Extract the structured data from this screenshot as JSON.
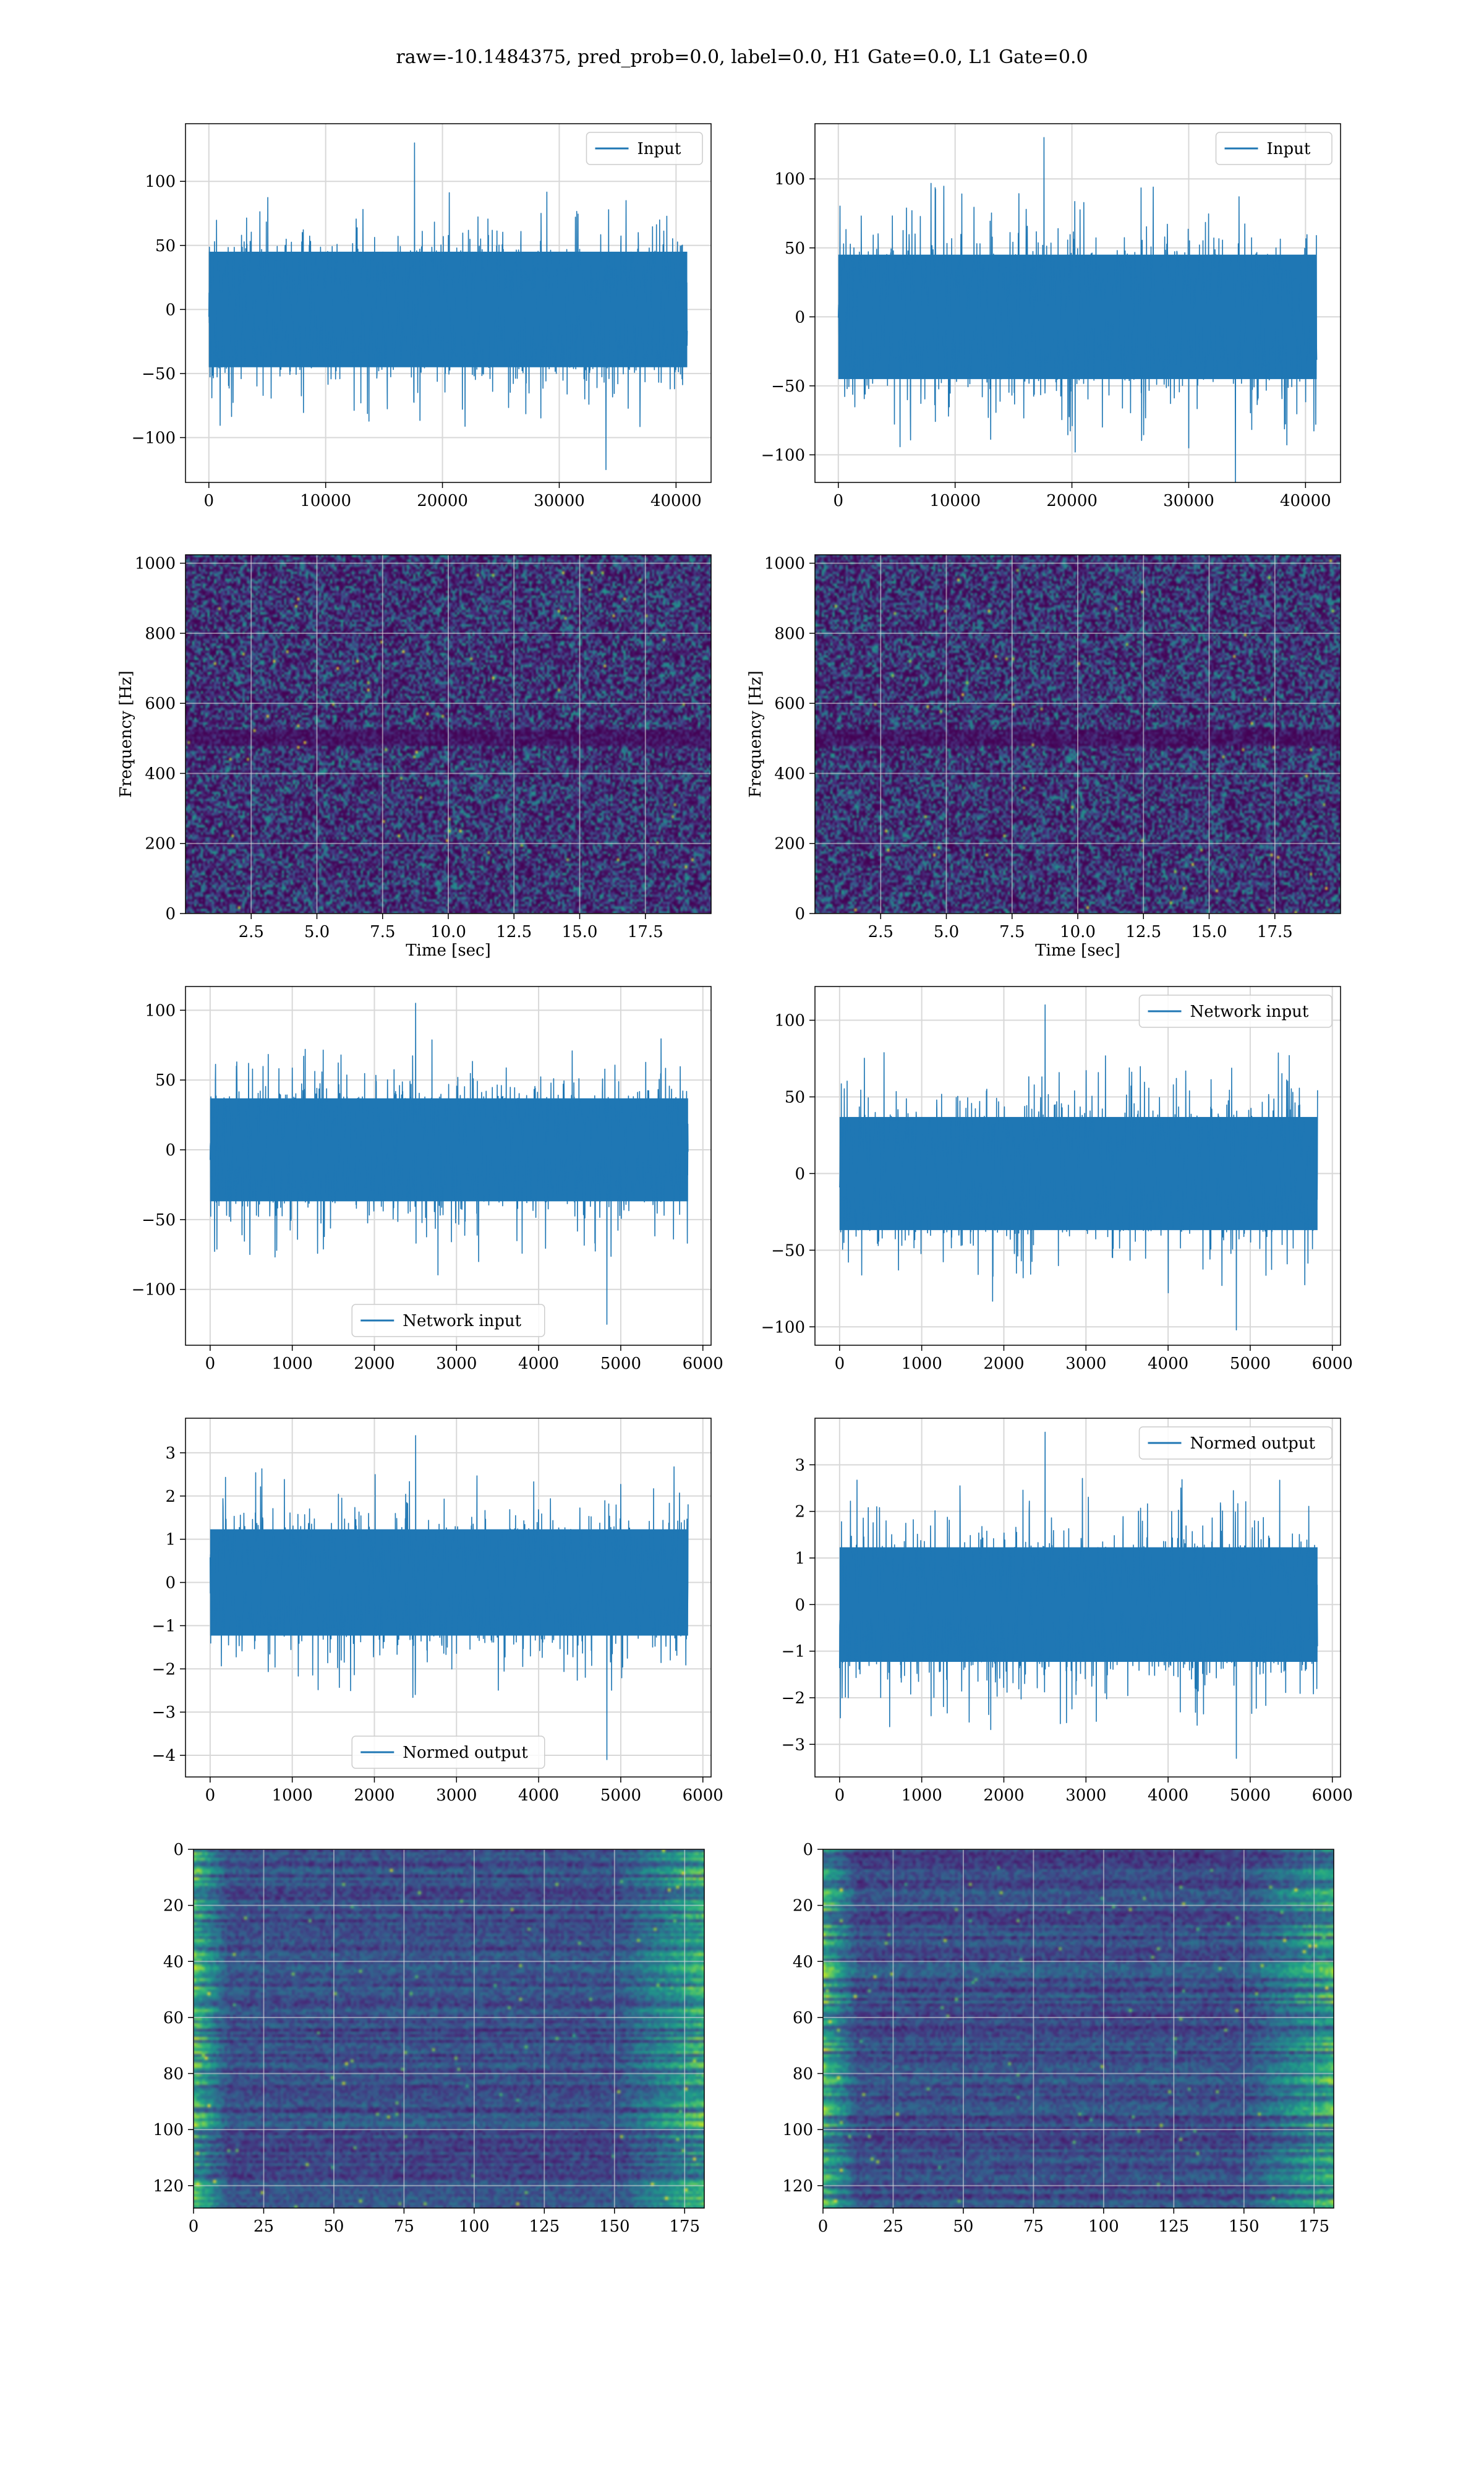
{
  "figure": {
    "suptitle": "raw=-10.1484375, pred_prob=0.0, label=0.0, H1 Gate=0.0, L1 Gate=0.0",
    "series_color": "#1f77b4",
    "grid_color": "#d8d8d8",
    "colormap": "viridis"
  },
  "chart_data": [
    {
      "id": "h1-input",
      "type": "line",
      "title": "",
      "xlabel": "",
      "ylabel": "",
      "legend": {
        "label": "Input",
        "position": "upper right"
      },
      "xlim": [
        -2000,
        43000
      ],
      "ylim": [
        -135,
        145
      ],
      "xticks": [
        0,
        10000,
        20000,
        30000,
        40000
      ],
      "yticks": [
        -100,
        -50,
        0,
        50,
        100
      ],
      "grid": true,
      "series": [
        {
          "name": "Input",
          "n_samples": 40960,
          "x_range": [
            0,
            40960
          ],
          "band": [
            -55,
            55
          ],
          "peak_max": 130,
          "peak_min": -125
        }
      ]
    },
    {
      "id": "l1-input",
      "type": "line",
      "title": "",
      "xlabel": "",
      "ylabel": "",
      "legend": {
        "label": "Input",
        "position": "upper right"
      },
      "xlim": [
        -2000,
        43000
      ],
      "ylim": [
        -120,
        140
      ],
      "xticks": [
        0,
        10000,
        20000,
        30000,
        40000
      ],
      "yticks": [
        -100,
        -50,
        0,
        50,
        100
      ],
      "grid": true,
      "series": [
        {
          "name": "Input",
          "n_samples": 40960,
          "x_range": [
            0,
            40960
          ],
          "band": [
            -55,
            55
          ],
          "peak_max": 130,
          "peak_min": -120
        }
      ]
    },
    {
      "id": "h1-spectrogram",
      "type": "heatmap",
      "title": "",
      "xlabel": "Time [sec]",
      "ylabel": "Frequency [Hz]",
      "xlim": [
        0,
        20
      ],
      "ylim": [
        0,
        1024
      ],
      "xticks": [
        "2.5",
        "5.0",
        "7.5",
        "10.0",
        "12.5",
        "15.0",
        "17.5"
      ],
      "xtick_values": [
        2.5,
        5.0,
        7.5,
        10.0,
        12.5,
        15.0,
        17.5
      ],
      "yticks": [
        0,
        200,
        400,
        600,
        800,
        1000
      ],
      "grid": true,
      "colormap": "viridis",
      "dark_band_hz": [
        480,
        530
      ]
    },
    {
      "id": "l1-spectrogram",
      "type": "heatmap",
      "title": "",
      "xlabel": "Time [sec]",
      "ylabel": "Frequency [Hz]",
      "xlim": [
        0,
        20
      ],
      "ylim": [
        0,
        1024
      ],
      "xticks": [
        "2.5",
        "5.0",
        "7.5",
        "10.0",
        "12.5",
        "15.0",
        "17.5"
      ],
      "xtick_values": [
        2.5,
        5.0,
        7.5,
        10.0,
        12.5,
        15.0,
        17.5
      ],
      "yticks": [
        0,
        200,
        400,
        600,
        800,
        1000
      ],
      "grid": true,
      "colormap": "viridis",
      "dark_band_hz": [
        480,
        530
      ]
    },
    {
      "id": "h1-network-input",
      "type": "line",
      "title": "",
      "xlabel": "",
      "ylabel": "",
      "legend": {
        "label": "Network input",
        "position": "lower center"
      },
      "xlim": [
        -300,
        6100
      ],
      "ylim": [
        -140,
        117
      ],
      "xticks": [
        0,
        1000,
        2000,
        3000,
        4000,
        5000,
        6000
      ],
      "yticks": [
        -100,
        -50,
        0,
        50,
        100
      ],
      "grid": true,
      "series": [
        {
          "name": "Network input",
          "n_samples": 5820,
          "x_range": [
            0,
            5820
          ],
          "band": [
            -45,
            45
          ],
          "peak_max": 105,
          "peak_min": -125
        }
      ]
    },
    {
      "id": "l1-network-input",
      "type": "line",
      "title": "",
      "xlabel": "",
      "ylabel": "",
      "legend": {
        "label": "Network input",
        "position": "upper right"
      },
      "xlim": [
        -300,
        6100
      ],
      "ylim": [
        -112,
        122
      ],
      "xticks": [
        0,
        1000,
        2000,
        3000,
        4000,
        5000,
        6000
      ],
      "yticks": [
        -100,
        -50,
        0,
        50,
        100
      ],
      "grid": true,
      "series": [
        {
          "name": "Network input",
          "n_samples": 5820,
          "x_range": [
            0,
            5820
          ],
          "band": [
            -45,
            45
          ],
          "peak_max": 110,
          "peak_min": -102
        }
      ]
    },
    {
      "id": "h1-normed-output",
      "type": "line",
      "title": "",
      "xlabel": "",
      "ylabel": "",
      "legend": {
        "label": "Normed output",
        "position": "lower center"
      },
      "xlim": [
        -300,
        6100
      ],
      "ylim": [
        -4.5,
        3.8
      ],
      "xticks": [
        0,
        1000,
        2000,
        3000,
        4000,
        5000,
        6000
      ],
      "yticks": [
        -4,
        -3,
        -2,
        -1,
        0,
        1,
        2,
        3
      ],
      "grid": true,
      "series": [
        {
          "name": "Normed output",
          "n_samples": 5820,
          "x_range": [
            0,
            5820
          ],
          "band": [
            -1.5,
            1.5
          ],
          "peak_max": 3.4,
          "peak_min": -4.1
        }
      ]
    },
    {
      "id": "l1-normed-output",
      "type": "line",
      "title": "",
      "xlabel": "",
      "ylabel": "",
      "legend": {
        "label": "Normed output",
        "position": "upper right"
      },
      "xlim": [
        -300,
        6100
      ],
      "ylim": [
        -3.7,
        4.0
      ],
      "xticks": [
        0,
        1000,
        2000,
        3000,
        4000,
        5000,
        6000
      ],
      "yticks": [
        -3,
        -2,
        -1,
        0,
        1,
        2,
        3
      ],
      "grid": true,
      "series": [
        {
          "name": "Normed output",
          "n_samples": 5820,
          "x_range": [
            0,
            5820
          ],
          "band": [
            -1.5,
            1.5
          ],
          "peak_max": 3.7,
          "peak_min": -3.3
        }
      ]
    },
    {
      "id": "h1-feature-map",
      "type": "heatmap",
      "title": "",
      "xlabel": "",
      "ylabel": "",
      "xlim": [
        0,
        182
      ],
      "ylim": [
        128,
        0
      ],
      "xticks": [
        0,
        25,
        50,
        75,
        100,
        125,
        150,
        175
      ],
      "yticks": [
        0,
        20,
        40,
        60,
        80,
        100,
        120
      ],
      "grid": true,
      "colormap": "viridis",
      "rows": 128,
      "cols": 182
    },
    {
      "id": "l1-feature-map",
      "type": "heatmap",
      "title": "",
      "xlabel": "",
      "ylabel": "",
      "xlim": [
        0,
        182
      ],
      "ylim": [
        128,
        0
      ],
      "xticks": [
        0,
        25,
        50,
        75,
        100,
        125,
        150,
        175
      ],
      "yticks": [
        0,
        20,
        40,
        60,
        80,
        100,
        120
      ],
      "grid": true,
      "colormap": "viridis",
      "rows": 128,
      "cols": 182
    }
  ]
}
